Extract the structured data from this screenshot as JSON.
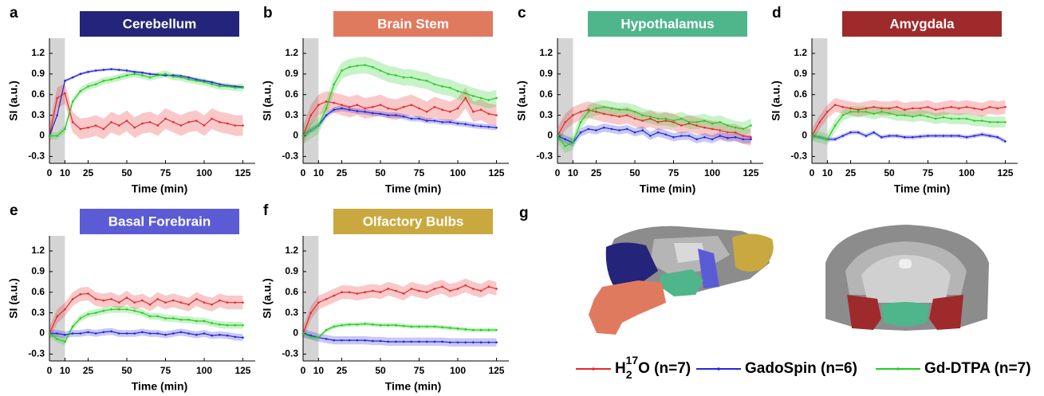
{
  "chart_data": [
    {
      "type": "line",
      "panel": "a",
      "title": "Cerebellum",
      "title_color": "#24247a",
      "xlabel": "Time (min)",
      "ylabel": "SI (a.u.)",
      "xlim": [
        0,
        133
      ],
      "ylim": [
        -0.4,
        1.42
      ],
      "xticks": [
        0,
        10,
        25,
        50,
        75,
        100,
        125
      ],
      "yticks": [
        -0.3,
        0,
        0.3,
        0.6,
        0.9,
        1.2
      ],
      "shade_x": [
        0,
        10
      ],
      "x": [
        0,
        5,
        10,
        15,
        20,
        25,
        30,
        35,
        40,
        45,
        50,
        55,
        60,
        65,
        70,
        75,
        80,
        85,
        90,
        95,
        100,
        105,
        110,
        115,
        120,
        125
      ],
      "series": [
        {
          "color": "#e8262a",
          "values": [
            0,
            0.55,
            0.62,
            0.2,
            0.1,
            0.12,
            0.15,
            0.1,
            0.2,
            0.15,
            0.22,
            0.12,
            0.18,
            0.2,
            0.15,
            0.25,
            0.2,
            0.15,
            0.2,
            0.22,
            0.15,
            0.25,
            0.2,
            0.18,
            0.15,
            0.15
          ],
          "error": 0.15
        },
        {
          "color": "#2424dd",
          "values": [
            0,
            0.3,
            0.8,
            0.85,
            0.9,
            0.93,
            0.95,
            0.96,
            0.97,
            0.96,
            0.95,
            0.93,
            0.92,
            0.9,
            0.89,
            0.88,
            0.88,
            0.87,
            0.85,
            0.82,
            0.8,
            0.78,
            0.75,
            0.73,
            0.72,
            0.71
          ],
          "error": 0.02
        },
        {
          "color": "#22cc22",
          "values": [
            0,
            0,
            0.1,
            0.5,
            0.65,
            0.72,
            0.75,
            0.8,
            0.82,
            0.85,
            0.88,
            0.9,
            0.88,
            0.85,
            0.88,
            0.9,
            0.86,
            0.85,
            0.82,
            0.8,
            0.78,
            0.75,
            0.72,
            0.72,
            0.7,
            0.7
          ],
          "error": 0.05
        }
      ]
    },
    {
      "type": "line",
      "panel": "b",
      "title": "Brain Stem",
      "title_color": "#e07a5f",
      "xlabel": "Time (min)",
      "ylabel": "SI (a.u.)",
      "xlim": [
        0,
        133
      ],
      "ylim": [
        -0.4,
        1.42
      ],
      "xticks": [
        0,
        10,
        25,
        50,
        75,
        100,
        125
      ],
      "yticks": [
        -0.3,
        0,
        0.3,
        0.6,
        0.9,
        1.2
      ],
      "shade_x": [
        0,
        10
      ],
      "x": [
        0,
        5,
        10,
        15,
        20,
        25,
        30,
        35,
        40,
        45,
        50,
        55,
        60,
        65,
        70,
        75,
        80,
        85,
        90,
        95,
        100,
        105,
        110,
        115,
        120,
        125
      ],
      "series": [
        {
          "color": "#e8262a",
          "values": [
            0,
            0.3,
            0.45,
            0.5,
            0.48,
            0.45,
            0.42,
            0.45,
            0.4,
            0.42,
            0.45,
            0.4,
            0.38,
            0.42,
            0.45,
            0.4,
            0.35,
            0.42,
            0.38,
            0.35,
            0.4,
            0.55,
            0.35,
            0.38,
            0.32,
            0.3
          ],
          "error": 0.15
        },
        {
          "color": "#2424dd",
          "values": [
            0,
            0.08,
            0.15,
            0.3,
            0.38,
            0.4,
            0.38,
            0.36,
            0.35,
            0.33,
            0.32,
            0.3,
            0.3,
            0.28,
            0.25,
            0.25,
            0.22,
            0.22,
            0.2,
            0.2,
            0.18,
            0.17,
            0.15,
            0.14,
            0.13,
            0.12
          ],
          "error": 0.04
        },
        {
          "color": "#22cc22",
          "values": [
            0,
            0.08,
            0.15,
            0.4,
            0.75,
            0.95,
            1.0,
            1.02,
            1.03,
            1.0,
            0.95,
            0.9,
            0.88,
            0.85,
            0.85,
            0.82,
            0.8,
            0.75,
            0.72,
            0.7,
            0.65,
            0.62,
            0.58,
            0.55,
            0.52,
            0.55
          ],
          "error": 0.12
        }
      ]
    },
    {
      "type": "line",
      "panel": "c",
      "title": "Hypothalamus",
      "title_color": "#4fb58a",
      "xlabel": "Time (min)",
      "ylabel": "SI (a.u.)",
      "xlim": [
        0,
        133
      ],
      "ylim": [
        -0.4,
        1.42
      ],
      "xticks": [
        0,
        10,
        25,
        50,
        75,
        100,
        125
      ],
      "yticks": [
        -0.3,
        0,
        0.3,
        0.6,
        0.9,
        1.2
      ],
      "shade_x": [
        0,
        10
      ],
      "x": [
        0,
        5,
        10,
        15,
        20,
        25,
        30,
        35,
        40,
        45,
        50,
        55,
        60,
        65,
        70,
        75,
        80,
        85,
        90,
        95,
        100,
        105,
        110,
        115,
        120,
        125
      ],
      "series": [
        {
          "color": "#e8262a",
          "values": [
            0,
            0.2,
            0.3,
            0.35,
            0.38,
            0.35,
            0.32,
            0.3,
            0.28,
            0.3,
            0.25,
            0.22,
            0.25,
            0.2,
            0.22,
            0.2,
            0.15,
            0.18,
            0.15,
            0.12,
            0.1,
            0.08,
            0.05,
            0.05,
            0,
            -0.02
          ],
          "error": 0.12
        },
        {
          "color": "#2424dd",
          "values": [
            0,
            -0.05,
            -0.1,
            0.05,
            0.1,
            0.08,
            0.12,
            0.1,
            0.08,
            0.1,
            0.05,
            0.08,
            0,
            0.05,
            0.02,
            -0.02,
            0,
            0,
            -0.05,
            -0.02,
            -0.05,
            0,
            -0.03,
            -0.02,
            -0.05,
            -0.05
          ],
          "error": 0.06
        },
        {
          "color": "#22cc22",
          "values": [
            0,
            -0.15,
            -0.1,
            0.2,
            0.35,
            0.4,
            0.42,
            0.4,
            0.38,
            0.38,
            0.35,
            0.3,
            0.28,
            0.25,
            0.25,
            0.22,
            0.25,
            0.2,
            0.2,
            0.22,
            0.18,
            0.2,
            0.15,
            0.12,
            0.1,
            0.15
          ],
          "error": 0.1
        }
      ]
    },
    {
      "type": "line",
      "panel": "d",
      "title": "Amygdala",
      "title_color": "#9e2a2b",
      "xlabel": "Time (min)",
      "ylabel": "SI (a.u.)",
      "xlim": [
        0,
        133
      ],
      "ylim": [
        -0.4,
        1.42
      ],
      "xticks": [
        0,
        10,
        25,
        50,
        75,
        100,
        125
      ],
      "yticks": [
        -0.3,
        0,
        0.3,
        0.6,
        0.9,
        1.2
      ],
      "shade_x": [
        0,
        10
      ],
      "x": [
        0,
        5,
        10,
        15,
        20,
        25,
        30,
        35,
        40,
        45,
        50,
        55,
        60,
        65,
        70,
        75,
        80,
        85,
        90,
        95,
        100,
        105,
        110,
        115,
        120,
        125
      ],
      "series": [
        {
          "color": "#e8262a",
          "values": [
            0,
            0.2,
            0.35,
            0.45,
            0.42,
            0.4,
            0.38,
            0.4,
            0.42,
            0.4,
            0.4,
            0.42,
            0.38,
            0.4,
            0.4,
            0.42,
            0.38,
            0.4,
            0.42,
            0.4,
            0.42,
            0.4,
            0.38,
            0.42,
            0.4,
            0.42
          ],
          "error": 0.1
        },
        {
          "color": "#2424dd",
          "values": [
            0,
            -0.02,
            -0.05,
            -0.05,
            0,
            0.05,
            0.05,
            0,
            0.05,
            -0.02,
            0,
            0,
            -0.02,
            -0.02,
            -0.01,
            0,
            0,
            0,
            0,
            0,
            -0.02,
            0,
            0.02,
            0,
            -0.02,
            -0.08
          ],
          "error": 0.03
        },
        {
          "color": "#22cc22",
          "values": [
            0,
            -0.02,
            -0.05,
            0.15,
            0.3,
            0.35,
            0.35,
            0.35,
            0.32,
            0.35,
            0.33,
            0.3,
            0.3,
            0.28,
            0.3,
            0.28,
            0.25,
            0.27,
            0.25,
            0.25,
            0.25,
            0.22,
            0.22,
            0.2,
            0.2,
            0.2
          ],
          "error": 0.08
        }
      ]
    },
    {
      "type": "line",
      "panel": "e",
      "title": "Basal Forebrain",
      "title_color": "#5b5bd6",
      "xlabel": "Time (min)",
      "ylabel": "SI (a.u.)",
      "xlim": [
        0,
        133
      ],
      "ylim": [
        -0.4,
        1.42
      ],
      "xticks": [
        0,
        10,
        25,
        50,
        75,
        100,
        125
      ],
      "yticks": [
        -0.3,
        0,
        0.3,
        0.6,
        0.9,
        1.2
      ],
      "shade_x": [
        0,
        10
      ],
      "x": [
        0,
        5,
        10,
        15,
        20,
        25,
        30,
        35,
        40,
        45,
        50,
        55,
        60,
        65,
        70,
        75,
        80,
        85,
        90,
        95,
        100,
        105,
        110,
        115,
        120,
        125
      ],
      "series": [
        {
          "color": "#e8262a",
          "values": [
            0,
            0.25,
            0.35,
            0.5,
            0.57,
            0.58,
            0.5,
            0.48,
            0.5,
            0.45,
            0.52,
            0.45,
            0.48,
            0.42,
            0.5,
            0.45,
            0.48,
            0.45,
            0.42,
            0.5,
            0.45,
            0.42,
            0.48,
            0.45,
            0.45,
            0.45
          ],
          "error": 0.1
        },
        {
          "color": "#2424dd",
          "values": [
            0,
            0,
            -0.02,
            0,
            0,
            0.02,
            0,
            0.02,
            0.03,
            0,
            0,
            0,
            0.02,
            0,
            0,
            -0.02,
            0,
            0.02,
            0,
            -0.02,
            0,
            -0.03,
            -0.02,
            -0.03,
            -0.05,
            -0.06
          ],
          "error": 0.05
        },
        {
          "color": "#22cc22",
          "values": [
            0,
            -0.08,
            -0.12,
            0.1,
            0.22,
            0.28,
            0.3,
            0.33,
            0.35,
            0.35,
            0.35,
            0.33,
            0.3,
            0.25,
            0.25,
            0.22,
            0.22,
            0.2,
            0.2,
            0.18,
            0.18,
            0.15,
            0.13,
            0.12,
            0.12,
            0.12
          ],
          "error": 0.05
        }
      ]
    },
    {
      "type": "line",
      "panel": "f",
      "title": "Olfactory Bulbs",
      "title_color": "#c9a93f",
      "xlabel": "Time (min)",
      "ylabel": "SI (a.u.)",
      "xlim": [
        0,
        133
      ],
      "ylim": [
        -0.4,
        1.42
      ],
      "xticks": [
        0,
        10,
        25,
        50,
        75,
        100,
        125
      ],
      "yticks": [
        -0.3,
        0,
        0.3,
        0.6,
        0.9,
        1.2
      ],
      "shade_x": [
        0,
        10
      ],
      "x": [
        0,
        5,
        10,
        15,
        20,
        25,
        30,
        35,
        40,
        45,
        50,
        55,
        60,
        65,
        70,
        75,
        80,
        85,
        90,
        95,
        100,
        105,
        110,
        115,
        120,
        125
      ],
      "series": [
        {
          "color": "#e8262a",
          "values": [
            0,
            0.3,
            0.45,
            0.5,
            0.55,
            0.6,
            0.6,
            0.58,
            0.6,
            0.62,
            0.6,
            0.65,
            0.62,
            0.58,
            0.65,
            0.62,
            0.6,
            0.65,
            0.68,
            0.62,
            0.65,
            0.7,
            0.65,
            0.62,
            0.68,
            0.65
          ],
          "error": 0.1
        },
        {
          "color": "#2424dd",
          "values": [
            0,
            -0.03,
            -0.06,
            -0.08,
            -0.1,
            -0.1,
            -0.1,
            -0.1,
            -0.1,
            -0.11,
            -0.11,
            -0.12,
            -0.12,
            -0.12,
            -0.12,
            -0.12,
            -0.12,
            -0.12,
            -0.12,
            -0.13,
            -0.13,
            -0.13,
            -0.13,
            -0.13,
            -0.13,
            -0.13
          ],
          "error": 0.06
        },
        {
          "color": "#22cc22",
          "values": [
            0,
            -0.05,
            -0.06,
            0.05,
            0.1,
            0.12,
            0.13,
            0.13,
            0.14,
            0.13,
            0.12,
            0.12,
            0.12,
            0.11,
            0.1,
            0.1,
            0.1,
            0.1,
            0.09,
            0.08,
            0.07,
            0.06,
            0.05,
            0.05,
            0.05,
            0.05
          ],
          "error": 0.03
        }
      ]
    }
  ],
  "figure_g": {
    "panel": "g",
    "legend": [
      {
        "color": "#e8262a",
        "name": "H",
        "sub": "2",
        "sup": "17",
        "after": "O (n=7)"
      },
      {
        "color": "#2424dd",
        "name": "GadoSpin (n=6)"
      },
      {
        "color": "#22cc22",
        "name": "Gd-DTPA (n=7)"
      }
    ]
  }
}
